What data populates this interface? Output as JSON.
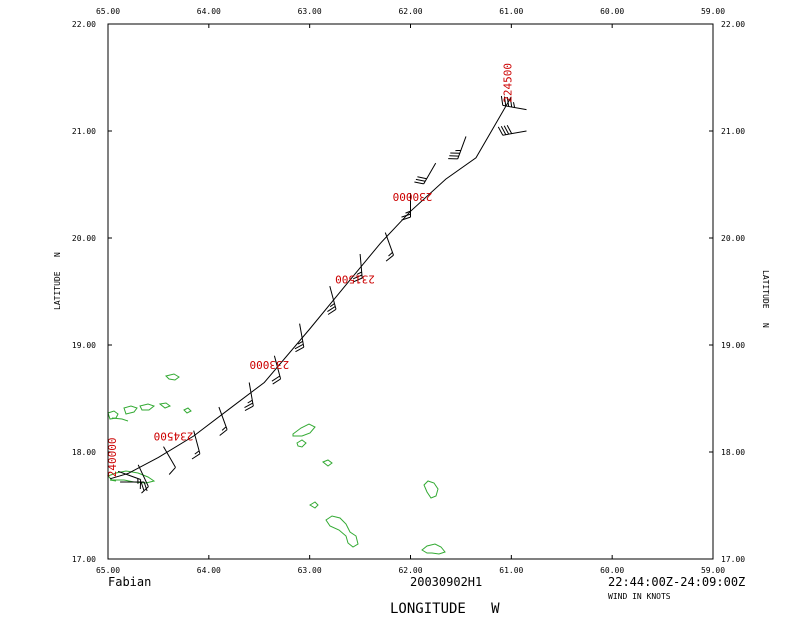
{
  "chart_data": {
    "type": "line",
    "storm_name": "Fabian",
    "flight_id": "20030902H1",
    "time_range": "22:44:00Z-24:09:00Z",
    "wind_units_note": "WIND IN KNOTS",
    "xlabel": "LONGITUDE   W",
    "ylabel": "LATITUDE   N",
    "xlim": [
      65.0,
      59.0
    ],
    "ylim": [
      17.0,
      22.0
    ],
    "x_ticks": [
      "65.00",
      "64.00",
      "63.00",
      "62.00",
      "61.00",
      "60.00",
      "59.00"
    ],
    "y_ticks": [
      "17.00",
      "18.00",
      "19.00",
      "20.00",
      "21.00",
      "22.00"
    ],
    "series": [
      {
        "x": [
          61.0,
          61.35,
          61.65,
          62.0,
          62.3,
          62.65,
          63.0,
          63.45,
          63.8,
          64.15,
          64.5,
          64.8,
          64.98
        ],
        "y": [
          21.32,
          20.75,
          20.55,
          20.25,
          19.95,
          19.55,
          19.15,
          18.65,
          18.4,
          18.15,
          17.95,
          17.8,
          17.75
        ]
      }
    ],
    "time_labels": [
      {
        "text": "224500",
        "lon": 61.0,
        "lat": 21.45
      },
      {
        "text": "230000",
        "lon": 61.98,
        "lat": 20.42
      },
      {
        "text": "231500",
        "lon": 62.55,
        "lat": 19.65
      },
      {
        "text": "233000",
        "lon": 63.4,
        "lat": 18.85
      },
      {
        "text": "234500",
        "lon": 64.35,
        "lat": 18.18
      },
      {
        "text": "240000",
        "lon": 64.92,
        "lat": 17.95
      }
    ],
    "wind_barbs": [
      {
        "lon": 60.85,
        "lat": 21.2,
        "dir": 280,
        "speed": 45
      },
      {
        "lon": 60.85,
        "lat": 21.0,
        "dir": 260,
        "speed": 40
      },
      {
        "lon": 61.45,
        "lat": 20.95,
        "dir": 200,
        "speed": 35
      },
      {
        "lon": 61.75,
        "lat": 20.7,
        "dir": 210,
        "speed": 30
      },
      {
        "lon": 62.0,
        "lat": 20.42,
        "dir": 180,
        "speed": 25
      },
      {
        "lon": 62.25,
        "lat": 20.05,
        "dir": 160,
        "speed": 15
      },
      {
        "lon": 62.5,
        "lat": 19.85,
        "dir": 175,
        "speed": 25
      },
      {
        "lon": 62.8,
        "lat": 19.55,
        "dir": 165,
        "speed": 25
      },
      {
        "lon": 63.1,
        "lat": 19.2,
        "dir": 170,
        "speed": 25
      },
      {
        "lon": 63.35,
        "lat": 18.9,
        "dir": 165,
        "speed": 20
      },
      {
        "lon": 63.6,
        "lat": 18.65,
        "dir": 170,
        "speed": 25
      },
      {
        "lon": 63.9,
        "lat": 18.42,
        "dir": 160,
        "speed": 15
      },
      {
        "lon": 64.15,
        "lat": 18.2,
        "dir": 165,
        "speed": 15
      },
      {
        "lon": 64.45,
        "lat": 18.05,
        "dir": 150,
        "speed": 10
      },
      {
        "lon": 64.7,
        "lat": 17.88,
        "dir": 155,
        "speed": 10
      },
      {
        "lon": 64.9,
        "lat": 17.82,
        "dir": 110,
        "speed": 15
      },
      {
        "lon": 64.88,
        "lat": 17.72,
        "dir": 90,
        "speed": 20
      }
    ],
    "colors": {
      "frame": "#000000",
      "track": "#000000",
      "time_labels": "#cc0000",
      "coastline": "#33aa33",
      "background": "#ffffff"
    }
  }
}
